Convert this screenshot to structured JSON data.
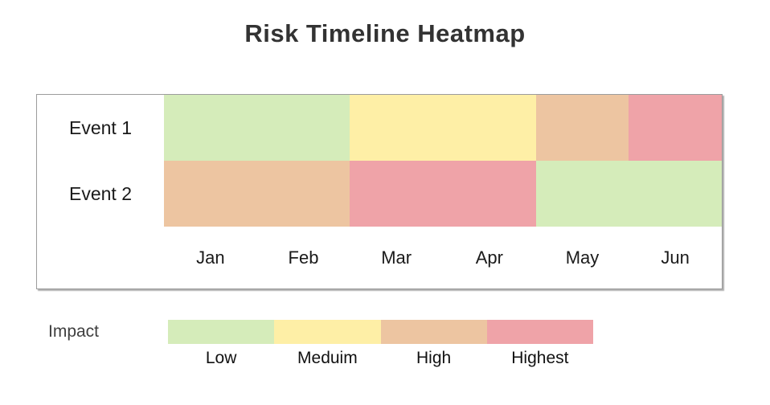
{
  "page": {
    "background_color": "#ffffff",
    "text_color": "#1a1a1a",
    "title_color": "#333333"
  },
  "chart_data": {
    "type": "heatmap",
    "title": "Risk Timeline Heatmap",
    "rows": [
      "Event 1",
      "Event 2"
    ],
    "columns": [
      "Jan",
      "Feb",
      "Mar",
      "Apr",
      "May",
      "Jun"
    ],
    "cells": [
      [
        "Low",
        "Low",
        "Meduim",
        "Meduim",
        "High",
        "Highest"
      ],
      [
        "High",
        "High",
        "Highest",
        "Highest",
        "Low",
        "Low"
      ]
    ],
    "levels": [
      {
        "label": "Low",
        "color": "#d5ecba"
      },
      {
        "label": "Meduim",
        "color": "#feefa6"
      },
      {
        "label": "High",
        "color": "#edc5a1"
      },
      {
        "label": "Highest",
        "color": "#efa3a8"
      }
    ],
    "legend": {
      "label": "Impact",
      "position": "bottom"
    },
    "layout_hints": {
      "grid_lines": "off",
      "x_axis": "months",
      "y_axis": "events"
    }
  }
}
